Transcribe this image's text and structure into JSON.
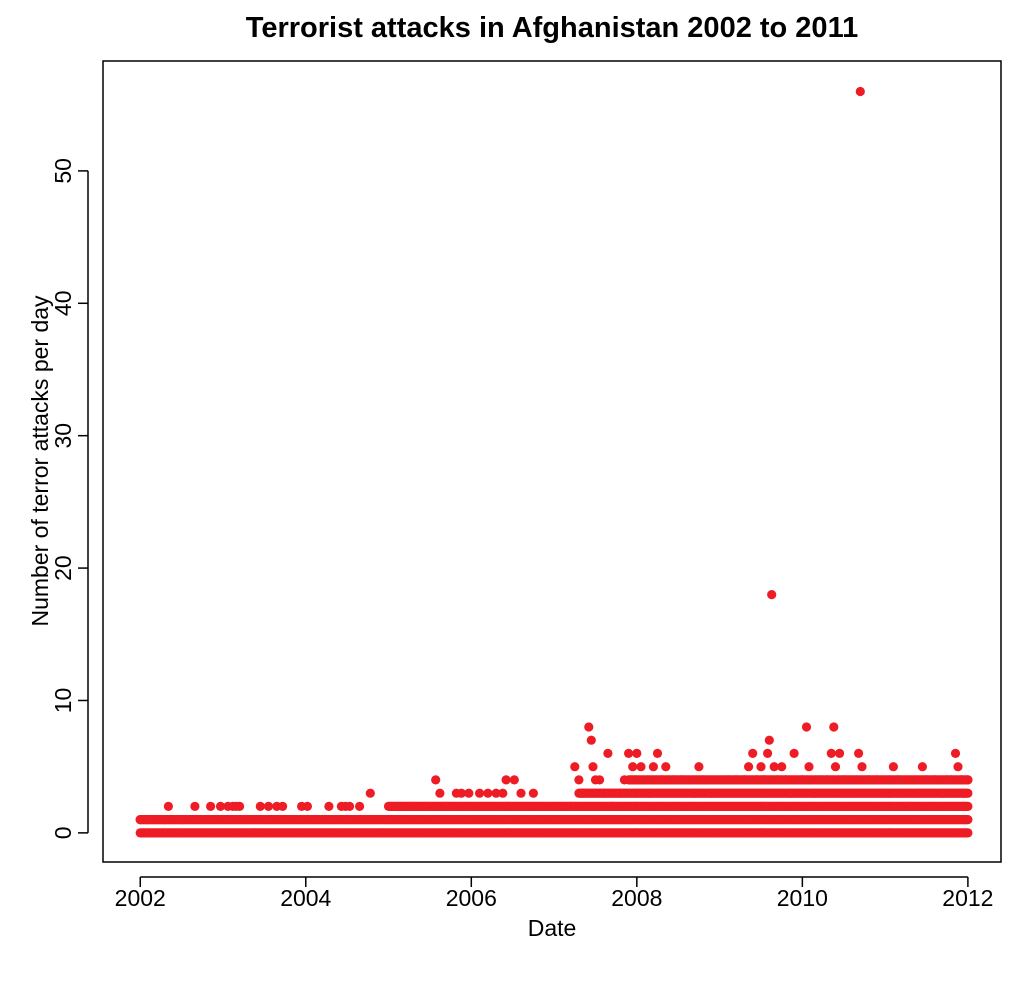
{
  "chart_data": {
    "type": "scatter",
    "title": "Terrorist attacks in Afghanistan 2002 to 2011",
    "xlabel": "Date",
    "ylabel": "Number of terror attacks per day",
    "x_ticks": [
      "2002",
      "2004",
      "2006",
      "2008",
      "2010",
      "2012"
    ],
    "y_ticks": [
      "0",
      "10",
      "20",
      "30",
      "40",
      "50"
    ],
    "xlim": [
      2001.55,
      2012.4
    ],
    "ylim": [
      -2.2,
      58.3
    ],
    "grid": false,
    "legend": "none",
    "marker_color": "#ee1c24",
    "series": [
      {
        "x_unit": "year",
        "points": [
          [
            2002.0,
            1
          ],
          [
            2002.08,
            1
          ],
          [
            2002.3,
            1
          ],
          [
            2002.34,
            2
          ],
          [
            2002.5,
            1
          ],
          [
            2002.66,
            2
          ],
          [
            2002.85,
            2
          ],
          [
            2002.97,
            2
          ],
          [
            2003.06,
            2
          ],
          [
            2003.12,
            2
          ],
          [
            2003.16,
            2
          ],
          [
            2003.2,
            2
          ],
          [
            2003.45,
            2
          ],
          [
            2003.55,
            2
          ],
          [
            2003.65,
            2
          ],
          [
            2003.72,
            2
          ],
          [
            2003.95,
            2
          ],
          [
            2004.02,
            2
          ],
          [
            2004.28,
            2
          ],
          [
            2004.43,
            2
          ],
          [
            2004.48,
            2
          ],
          [
            2004.53,
            2
          ],
          [
            2004.65,
            2
          ],
          [
            2004.78,
            3
          ],
          [
            2005.3,
            2
          ],
          [
            2005.45,
            2
          ],
          [
            2005.57,
            4
          ],
          [
            2005.62,
            3
          ],
          [
            2005.7,
            2
          ],
          [
            2005.82,
            3
          ],
          [
            2005.88,
            3
          ],
          [
            2005.97,
            3
          ],
          [
            2006.1,
            3
          ],
          [
            2006.2,
            3
          ],
          [
            2006.3,
            3
          ],
          [
            2006.38,
            3
          ],
          [
            2006.42,
            4
          ],
          [
            2006.52,
            4
          ],
          [
            2006.6,
            3
          ],
          [
            2006.75,
            3
          ],
          [
            2007.2,
            2
          ],
          [
            2007.25,
            5
          ],
          [
            2007.3,
            4
          ],
          [
            2007.35,
            3
          ],
          [
            2007.42,
            8
          ],
          [
            2007.45,
            7
          ],
          [
            2007.47,
            5
          ],
          [
            2007.5,
            4
          ],
          [
            2007.55,
            4
          ],
          [
            2007.6,
            3
          ],
          [
            2007.65,
            6
          ],
          [
            2007.7,
            2
          ],
          [
            2007.8,
            3
          ],
          [
            2007.85,
            4
          ],
          [
            2007.9,
            6
          ],
          [
            2007.95,
            5
          ],
          [
            2008.0,
            6
          ],
          [
            2008.05,
            5
          ],
          [
            2008.15,
            3
          ],
          [
            2008.2,
            5
          ],
          [
            2008.25,
            6
          ],
          [
            2008.3,
            4
          ],
          [
            2008.35,
            5
          ],
          [
            2008.45,
            4
          ],
          [
            2008.55,
            4
          ],
          [
            2008.7,
            3
          ],
          [
            2008.75,
            5
          ],
          [
            2008.8,
            4
          ],
          [
            2008.9,
            3
          ],
          [
            2009.0,
            3
          ],
          [
            2009.1,
            4
          ],
          [
            2009.2,
            4
          ],
          [
            2009.3,
            4
          ],
          [
            2009.35,
            5
          ],
          [
            2009.4,
            6
          ],
          [
            2009.45,
            4
          ],
          [
            2009.5,
            5
          ],
          [
            2009.55,
            4
          ],
          [
            2009.58,
            6
          ],
          [
            2009.6,
            7
          ],
          [
            2009.63,
            18
          ],
          [
            2009.66,
            5
          ],
          [
            2009.7,
            4
          ],
          [
            2009.75,
            5
          ],
          [
            2009.8,
            4
          ],
          [
            2009.85,
            3
          ],
          [
            2009.9,
            6
          ],
          [
            2010.0,
            4
          ],
          [
            2010.05,
            8
          ],
          [
            2010.08,
            5
          ],
          [
            2010.15,
            3
          ],
          [
            2010.2,
            4
          ],
          [
            2010.3,
            4
          ],
          [
            2010.35,
            6
          ],
          [
            2010.38,
            8
          ],
          [
            2010.4,
            5
          ],
          [
            2010.45,
            6
          ],
          [
            2010.5,
            4
          ],
          [
            2010.55,
            3
          ],
          [
            2010.65,
            4
          ],
          [
            2010.68,
            6
          ],
          [
            2010.72,
            5
          ],
          [
            2010.7,
            56
          ],
          [
            2010.8,
            4
          ],
          [
            2010.9,
            4
          ],
          [
            2011.0,
            3
          ],
          [
            2011.1,
            5
          ],
          [
            2011.15,
            4
          ],
          [
            2011.2,
            3
          ],
          [
            2011.3,
            2
          ],
          [
            2011.4,
            3
          ],
          [
            2011.45,
            5
          ],
          [
            2011.5,
            4
          ],
          [
            2011.6,
            4
          ],
          [
            2011.7,
            3
          ],
          [
            2011.75,
            4
          ],
          [
            2011.8,
            4
          ],
          [
            2011.85,
            6
          ],
          [
            2011.88,
            5
          ],
          [
            2011.92,
            4
          ],
          [
            2011.95,
            3
          ],
          [
            2012.0,
            4
          ]
        ],
        "daily_band": {
          "x_range": [
            2002.0,
            2012.0
          ],
          "always_present_levels": [
            0,
            1
          ],
          "level_2_from": 2005.0,
          "level_3_from": 2007.3,
          "level_4_from": 2007.9
        }
      }
    ]
  }
}
